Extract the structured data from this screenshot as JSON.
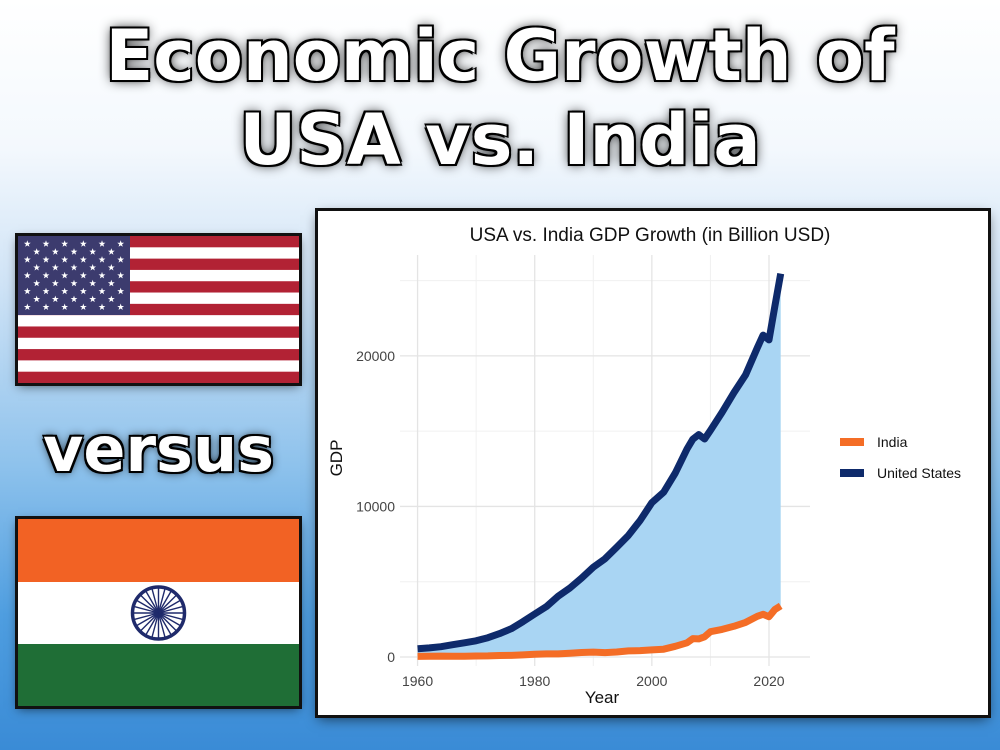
{
  "headline": {
    "line1": "Economic Growth of",
    "line2": "USA vs. India"
  },
  "versus_label": "versus",
  "flags": [
    {
      "name": "United States",
      "colors": {
        "red": "#B22234",
        "blue": "#3C3B6E",
        "white": "#FFFFFF"
      }
    },
    {
      "name": "India",
      "colors": {
        "saffron": "#F26224",
        "white": "#FFFFFF",
        "green": "#1F6E36",
        "chakra": "#1F2A6B"
      }
    }
  ],
  "chart_data": {
    "type": "line",
    "title": "USA vs. India GDP Growth (in Billion USD)",
    "xlabel": "Year",
    "ylabel": "GDP",
    "xlim": [
      1957,
      2027
    ],
    "ylim": [
      -600,
      26700
    ],
    "x_ticks": [
      1960,
      1980,
      2000,
      2020
    ],
    "y_ticks": [
      0,
      10000,
      20000
    ],
    "grid": true,
    "legend_position": "right",
    "fill_between_series": {
      "color": "#a9d5f3"
    },
    "x": [
      1960,
      1962,
      1964,
      1966,
      1968,
      1970,
      1972,
      1974,
      1976,
      1978,
      1980,
      1982,
      1984,
      1986,
      1988,
      1990,
      1992,
      1994,
      1996,
      1998,
      2000,
      2002,
      2004,
      2006,
      2007,
      2008,
      2009,
      2010,
      2012,
      2014,
      2016,
      2018,
      2019,
      2020,
      2021,
      2022
    ],
    "series": [
      {
        "name": "India",
        "color": "#F46D26",
        "values": [
          37,
          42,
          56,
          46,
          54,
          63,
          71,
          99,
          104,
          137,
          186,
          201,
          207,
          248,
          297,
          321,
          293,
          333,
          400,
          421,
          468,
          514,
          709,
          940,
          1217,
          1199,
          1342,
          1676,
          1828,
          2039,
          2295,
          2703,
          2836,
          2672,
          3150,
          3390
        ]
      },
      {
        "name": "United States",
        "color": "#0E2A6B",
        "values": [
          543,
          603,
          685,
          813,
          941,
          1073,
          1280,
          1549,
          1877,
          2351,
          2857,
          3345,
          4037,
          4580,
          5236,
          5963,
          6520,
          7287,
          8073,
          9063,
          10252,
          10936,
          12217,
          13815,
          14474,
          14770,
          14478,
          15049,
          16254,
          17551,
          18745,
          20533,
          21381,
          21060,
          23315,
          25463
        ]
      }
    ]
  }
}
